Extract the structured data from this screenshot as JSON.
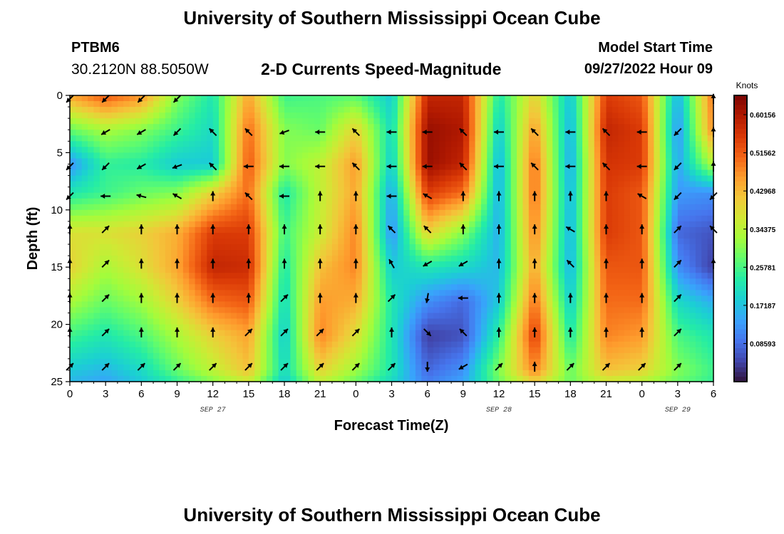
{
  "header": {
    "title": "University of Southern Mississippi Ocean Cube",
    "station": "PTBM6",
    "coords": "30.2120N  88.5050W",
    "subtitle": "2-D Currents Speed-Magnitude",
    "start_label": "Model Start Time",
    "start_value": "09/27/2022 Hour 09"
  },
  "footer": {
    "title": "University of Southern Mississippi Ocean Cube"
  },
  "colors": {
    "background": "#ffffff",
    "arrow": "#000000",
    "colormap": [
      "#30123b",
      "#4145ab",
      "#4675ed",
      "#39a2fc",
      "#1bcfd4",
      "#24eca6",
      "#61fc6c",
      "#a4fc3b",
      "#d1e834",
      "#f3c63a",
      "#fe9b2d",
      "#f36315",
      "#d93806",
      "#b11901",
      "#7a0402"
    ]
  },
  "chart_data": {
    "type": "heatmap",
    "title": "2-D Currents Speed-Magnitude",
    "xlabel": "Forecast Time(Z)",
    "ylabel": "Depth (ft)",
    "xlim": [
      0,
      54
    ],
    "ylim": [
      0,
      25
    ],
    "y_inverted": true,
    "x_ticks": [
      0,
      3,
      6,
      9,
      12,
      15,
      18,
      21,
      24,
      27,
      30,
      33,
      36,
      39,
      42,
      45,
      48,
      51,
      54
    ],
    "x_tick_labels": [
      "0",
      "3",
      "6",
      "9",
      "12",
      "15",
      "18",
      "21",
      "0",
      "3",
      "6",
      "9",
      "12",
      "15",
      "18",
      "21",
      "0",
      "3",
      "6"
    ],
    "y_ticks": [
      0,
      5,
      10,
      15,
      20,
      25
    ],
    "y_tick_labels": [
      "0",
      "5",
      "10",
      "15",
      "20",
      "25"
    ],
    "date_labels": [
      {
        "x": 12,
        "text": "SEP 27"
      },
      {
        "x": 36,
        "text": "SEP 28"
      },
      {
        "x": 51,
        "text": "SEP 29"
      }
    ],
    "colorbar": {
      "title": "Knots",
      "min": 0.0,
      "max": 0.645,
      "ticks": [
        0.60156,
        0.51562,
        0.42968,
        0.34375,
        0.25781,
        0.17187,
        0.08593
      ],
      "tick_labels": [
        "0.60156",
        "0.51562",
        "0.42968",
        "0.34375",
        "0.25781",
        "0.17187",
        "0.08593"
      ]
    },
    "grid_x": [
      0,
      3,
      6,
      9,
      12,
      15,
      18,
      21,
      24,
      27,
      30,
      33,
      36,
      39,
      42,
      45,
      48,
      51,
      54
    ],
    "grid_depth": [
      0,
      3,
      6,
      8.5,
      12,
      15,
      18,
      21,
      24,
      25
    ],
    "speed_knots": [
      [
        0.45,
        0.52,
        0.47,
        0.3,
        0.22,
        0.45,
        0.25,
        0.26,
        0.27,
        0.18,
        0.58,
        0.58,
        0.22,
        0.4,
        0.17,
        0.55,
        0.52,
        0.15,
        0.5
      ],
      [
        0.28,
        0.33,
        0.3,
        0.25,
        0.2,
        0.5,
        0.3,
        0.28,
        0.4,
        0.2,
        0.62,
        0.6,
        0.18,
        0.46,
        0.15,
        0.58,
        0.55,
        0.12,
        0.48
      ],
      [
        0.12,
        0.24,
        0.23,
        0.18,
        0.18,
        0.52,
        0.3,
        0.35,
        0.46,
        0.18,
        0.62,
        0.58,
        0.15,
        0.5,
        0.14,
        0.56,
        0.55,
        0.14,
        0.34
      ],
      [
        0.22,
        0.25,
        0.28,
        0.3,
        0.4,
        0.5,
        0.22,
        0.35,
        0.45,
        0.14,
        0.55,
        0.5,
        0.15,
        0.5,
        0.15,
        0.55,
        0.52,
        0.13,
        0.12
      ],
      [
        0.38,
        0.38,
        0.4,
        0.44,
        0.55,
        0.55,
        0.25,
        0.36,
        0.48,
        0.12,
        0.4,
        0.3,
        0.15,
        0.48,
        0.15,
        0.55,
        0.52,
        0.08,
        0.06
      ],
      [
        0.4,
        0.33,
        0.38,
        0.45,
        0.58,
        0.57,
        0.22,
        0.42,
        0.48,
        0.18,
        0.22,
        0.2,
        0.16,
        0.45,
        0.15,
        0.52,
        0.52,
        0.12,
        0.04
      ],
      [
        0.33,
        0.28,
        0.32,
        0.4,
        0.5,
        0.52,
        0.2,
        0.46,
        0.44,
        0.22,
        0.12,
        0.08,
        0.18,
        0.5,
        0.18,
        0.5,
        0.5,
        0.2,
        0.15
      ],
      [
        0.25,
        0.22,
        0.26,
        0.33,
        0.4,
        0.45,
        0.18,
        0.48,
        0.38,
        0.22,
        0.04,
        0.06,
        0.24,
        0.55,
        0.22,
        0.48,
        0.46,
        0.26,
        0.22
      ],
      [
        0.18,
        0.16,
        0.2,
        0.28,
        0.35,
        0.42,
        0.2,
        0.4,
        0.32,
        0.22,
        0.08,
        0.12,
        0.3,
        0.48,
        0.28,
        0.42,
        0.4,
        0.3,
        0.25
      ],
      [
        0.16,
        0.14,
        0.18,
        0.24,
        0.3,
        0.36,
        0.18,
        0.35,
        0.28,
        0.2,
        0.1,
        0.14,
        0.28,
        0.4,
        0.28,
        0.36,
        0.34,
        0.28,
        0.24
      ]
    ],
    "arrows": {
      "x": [
        0,
        3,
        6,
        9,
        12,
        15,
        18,
        21,
        24,
        27,
        30,
        33,
        36,
        39,
        42,
        45,
        48,
        51,
        54
      ],
      "depth": [
        0.3,
        3.2,
        6.2,
        8.8,
        11.7,
        14.7,
        17.7,
        20.7,
        23.7
      ],
      "direction_deg": [
        [
          225,
          225,
          225,
          225,
          null,
          null,
          null,
          null,
          null,
          null,
          null,
          null,
          null,
          null,
          null,
          null,
          null,
          null,
          0
        ],
        [
          null,
          240,
          240,
          225,
          315,
          315,
          250,
          270,
          315,
          270,
          270,
          315,
          270,
          315,
          270,
          315,
          270,
          225,
          0
        ],
        [
          225,
          225,
          240,
          250,
          315,
          270,
          270,
          270,
          315,
          270,
          270,
          315,
          270,
          315,
          270,
          315,
          270,
          225,
          0
        ],
        [
          225,
          270,
          285,
          300,
          0,
          315,
          270,
          0,
          0,
          270,
          300,
          0,
          0,
          0,
          0,
          0,
          300,
          225,
          225
        ],
        [
          0,
          45,
          0,
          0,
          0,
          0,
          0,
          0,
          0,
          315,
          315,
          0,
          0,
          0,
          300,
          0,
          0,
          45,
          315
        ],
        [
          0,
          45,
          0,
          0,
          0,
          0,
          0,
          0,
          0,
          330,
          240,
          240,
          0,
          0,
          315,
          0,
          0,
          45,
          0
        ],
        [
          0,
          45,
          0,
          0,
          0,
          0,
          45,
          0,
          0,
          45,
          190,
          270,
          0,
          0,
          0,
          0,
          0,
          45,
          null
        ],
        [
          0,
          45,
          0,
          0,
          0,
          45,
          45,
          45,
          45,
          0,
          135,
          315,
          0,
          0,
          0,
          0,
          0,
          45,
          null
        ],
        [
          45,
          45,
          45,
          45,
          45,
          45,
          45,
          45,
          45,
          45,
          180,
          240,
          45,
          0,
          45,
          45,
          45,
          45,
          null
        ]
      ]
    }
  }
}
